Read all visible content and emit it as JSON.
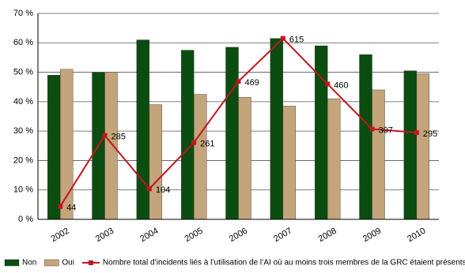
{
  "chart_data": {
    "type": "bar_line",
    "categories": [
      "2002",
      "2003",
      "2004",
      "2005",
      "2006",
      "2007",
      "2008",
      "2009",
      "2010"
    ],
    "series": [
      {
        "name": "Non",
        "color": "#0b4d10",
        "values": [
          49,
          50,
          61,
          57.5,
          58.5,
          61.5,
          59,
          56,
          50.5
        ]
      },
      {
        "name": "Oui",
        "color": "#c4a47a",
        "values": [
          51,
          50,
          39,
          42.5,
          41.5,
          38.5,
          41,
          44,
          49.5
        ]
      },
      {
        "name": "Nombre total d’incidents liés à l’utilisation de l’AI où au moins trois membres de la GRC étaient présents",
        "type": "line",
        "axis": "y2",
        "color": "#c0161e",
        "values": [
          44,
          285,
          104,
          261,
          469,
          615,
          460,
          307,
          295
        ]
      }
    ],
    "ylim": [
      0,
      70
    ],
    "yticks": [
      {
        "value": 0,
        "label": "0 %"
      },
      {
        "value": 10,
        "label": "10 %"
      },
      {
        "value": 20,
        "label": "20 %"
      },
      {
        "value": 30,
        "label": "30 %"
      },
      {
        "value": 40,
        "label": "40 %"
      },
      {
        "value": 50,
        "label": "50 %"
      },
      {
        "value": 60,
        "label": "60 %"
      },
      {
        "value": 70,
        "label": "70 %"
      }
    ],
    "y2lim": [
      0,
      700
    ],
    "grid": true,
    "legend": "bottom"
  }
}
